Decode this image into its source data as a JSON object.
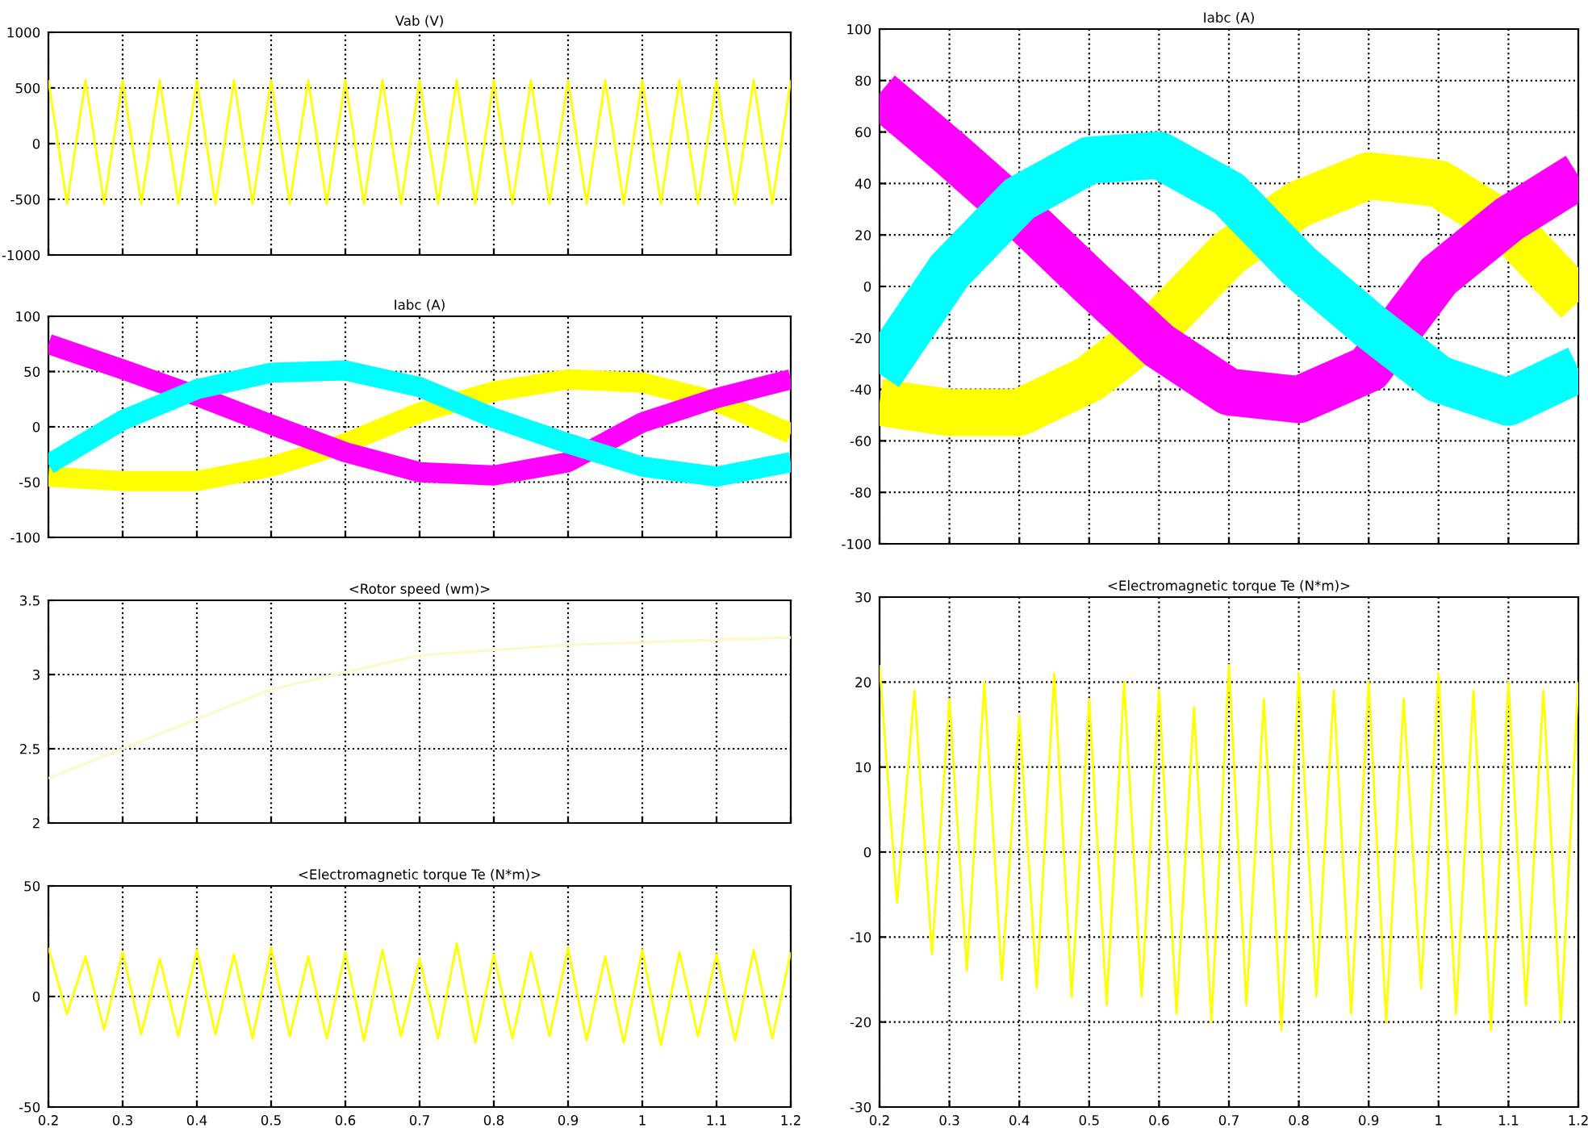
{
  "chart_data": [
    {
      "type": "line",
      "title": "Vab (V)",
      "xlim": [
        0.2,
        1.2
      ],
      "xticks": [
        0.2,
        0.3,
        0.4,
        0.5,
        0.6,
        0.7,
        0.8,
        0.9,
        1,
        1.1,
        1.2
      ],
      "ylim": [
        -1000,
        1000
      ],
      "yticks": [
        -1000,
        -500,
        0,
        500,
        1000
      ],
      "grid": true,
      "tick_labels": "y",
      "x": [
        0.2,
        0.225,
        0.25,
        0.275,
        0.3,
        0.325,
        0.35,
        0.375,
        0.4,
        0.425,
        0.45,
        0.475,
        0.5,
        0.525,
        0.55,
        0.575,
        0.6,
        0.625,
        0.65,
        0.675,
        0.7,
        0.725,
        0.75,
        0.775,
        0.8,
        0.825,
        0.85,
        0.875,
        0.9,
        0.925,
        0.95,
        0.975,
        1,
        1.025,
        1.05,
        1.075,
        1.1,
        1.125,
        1.15,
        1.175,
        1.2
      ],
      "series": [
        {
          "color": "#ffff00",
          "values": [
            570,
            -540,
            570,
            -540,
            570,
            -540,
            570,
            -540,
            570,
            -540,
            570,
            -540,
            570,
            -540,
            570,
            -540,
            570,
            -540,
            570,
            -540,
            570,
            -540,
            570,
            -540,
            570,
            -540,
            570,
            -540,
            570,
            -540,
            570,
            -540,
            570,
            -540,
            570,
            -540,
            570,
            -540,
            570,
            -540,
            570
          ]
        }
      ]
    },
    {
      "type": "line",
      "title": "Iabc (A)",
      "xlim": [
        0.2,
        1.2
      ],
      "xticks": [
        0.2,
        0.3,
        0.4,
        0.5,
        0.6,
        0.7,
        0.8,
        0.9,
        1,
        1.1,
        1.2
      ],
      "ylim": [
        -100,
        100
      ],
      "yticks": [
        -100,
        -50,
        0,
        50,
        100
      ],
      "grid": true,
      "tick_labels": "y",
      "x": [
        0.2,
        0.3,
        0.4,
        0.5,
        0.6,
        0.7,
        0.8,
        0.9,
        1,
        1.1,
        1.2
      ],
      "series": [
        {
          "color": "#ffff00",
          "values": [
            -45,
            -49,
            -49,
            -36,
            -15,
            13,
            32,
            43,
            40,
            23,
            -6
          ]
        },
        {
          "color": "#ff00ff",
          "values": [
            75,
            52,
            28,
            2,
            -23,
            -41,
            -44,
            -32,
            4,
            26,
            43
          ]
        },
        {
          "color": "#00ffff",
          "values": [
            -34,
            6,
            34,
            49,
            51,
            36,
            8,
            -15,
            -36,
            -45,
            -32
          ]
        }
      ]
    },
    {
      "type": "line",
      "title": "<Rotor speed (wm)>",
      "xlim": [
        0.2,
        1.2
      ],
      "xticks": [
        0.2,
        0.3,
        0.4,
        0.5,
        0.6,
        0.7,
        0.8,
        0.9,
        1,
        1.1,
        1.2
      ],
      "ylim": [
        2,
        3.5
      ],
      "yticks": [
        2,
        2.5,
        3,
        3.5
      ],
      "grid": true,
      "tick_labels": "y",
      "x": [
        0.2,
        0.3,
        0.5,
        0.7,
        0.9,
        1.2
      ],
      "series": [
        {
          "color": "#fbfacb",
          "values": [
            2.3,
            2.5,
            2.9,
            3.13,
            3.2,
            3.25
          ]
        }
      ]
    },
    {
      "type": "line",
      "title": "<Electromagnetic torque Te (N*m)>",
      "xlim": [
        0.2,
        1.2
      ],
      "xticks": [
        0.2,
        0.3,
        0.4,
        0.5,
        0.6,
        0.7,
        0.8,
        0.9,
        1,
        1.1,
        1.2
      ],
      "ylim": [
        -50,
        50
      ],
      "yticks": [
        -50,
        0,
        50
      ],
      "grid": true,
      "x": [
        0.2,
        0.225,
        0.25,
        0.275,
        0.3,
        0.325,
        0.35,
        0.375,
        0.4,
        0.425,
        0.45,
        0.475,
        0.5,
        0.525,
        0.55,
        0.575,
        0.6,
        0.625,
        0.65,
        0.675,
        0.7,
        0.725,
        0.75,
        0.775,
        0.8,
        0.825,
        0.85,
        0.875,
        0.9,
        0.925,
        0.95,
        0.975,
        1,
        1.025,
        1.05,
        1.075,
        1.1,
        1.125,
        1.15,
        1.175,
        1.2
      ],
      "series": [
        {
          "color": "#ffff00",
          "values": [
            22,
            -8,
            18,
            -15,
            20,
            -17,
            17,
            -18,
            21,
            -17,
            19,
            -19,
            22,
            -18,
            18,
            -19,
            20,
            -20,
            21,
            -18,
            17,
            -19,
            24,
            -21,
            19,
            -19,
            20,
            -18,
            22,
            -20,
            18,
            -21,
            21,
            -22,
            20,
            -18,
            19,
            -20,
            21,
            -19,
            20
          ]
        }
      ]
    },
    {
      "type": "line",
      "title": "Iabc (A)",
      "xlim": [
        0.2,
        1.2
      ],
      "xticks": [
        0.2,
        0.3,
        0.4,
        0.5,
        0.6,
        0.7,
        0.8,
        0.9,
        1,
        1.1,
        1.2
      ],
      "ylim": [
        -100,
        100
      ],
      "yticks": [
        -100,
        -80,
        -60,
        -40,
        -20,
        0,
        20,
        40,
        60,
        80,
        100
      ],
      "grid": true,
      "tick_labels": "y",
      "x": [
        0.2,
        0.3,
        0.4,
        0.5,
        0.6,
        0.7,
        0.8,
        0.9,
        1,
        1.1,
        1.2
      ],
      "series": [
        {
          "color": "#ffff00",
          "values": [
            -45,
            -49,
            -49,
            -36,
            -15,
            13,
            32,
            43,
            40,
            23,
            -6
          ]
        },
        {
          "color": "#ff00ff",
          "values": [
            75,
            52,
            28,
            2,
            -23,
            -41,
            -44,
            -32,
            4,
            26,
            43
          ]
        },
        {
          "color": "#00ffff",
          "values": [
            -34,
            6,
            34,
            49,
            51,
            36,
            8,
            -15,
            -36,
            -45,
            -32
          ]
        }
      ]
    },
    {
      "type": "line",
      "title": "<Electromagnetic torque Te (N*m)>",
      "xlim": [
        0.2,
        1.2
      ],
      "xticks": [
        0.2,
        0.3,
        0.4,
        0.5,
        0.6,
        0.7,
        0.8,
        0.9,
        1,
        1.1,
        1.2
      ],
      "ylim": [
        -30,
        30
      ],
      "yticks": [
        -30,
        -20,
        -10,
        0,
        10,
        20,
        30
      ],
      "grid": true,
      "x": [
        0.2,
        0.225,
        0.25,
        0.275,
        0.3,
        0.325,
        0.35,
        0.375,
        0.4,
        0.425,
        0.45,
        0.475,
        0.5,
        0.525,
        0.55,
        0.575,
        0.6,
        0.625,
        0.65,
        0.675,
        0.7,
        0.725,
        0.75,
        0.775,
        0.8,
        0.825,
        0.85,
        0.875,
        0.9,
        0.925,
        0.95,
        0.975,
        1,
        1.025,
        1.05,
        1.075,
        1.1,
        1.125,
        1.15,
        1.175,
        1.2
      ],
      "series": [
        {
          "color": "#ffff00",
          "values": [
            22,
            -6,
            19,
            -12,
            18,
            -14,
            20,
            -15,
            16,
            -16,
            21,
            -17,
            18,
            -18,
            20,
            -17,
            19,
            -19,
            17,
            -20,
            22,
            -18,
            18,
            -21,
            21,
            -17,
            19,
            -19,
            20,
            -20,
            18,
            -16,
            21,
            -19,
            19,
            -21,
            20,
            -18,
            19,
            -20,
            20
          ]
        }
      ]
    }
  ]
}
